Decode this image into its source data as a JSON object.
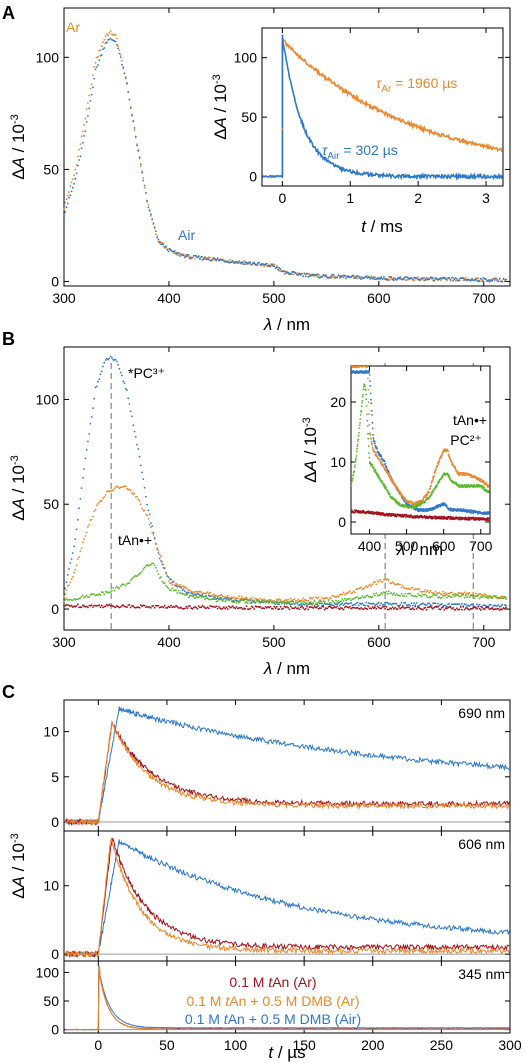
{
  "panels": {
    "A": {
      "label": "A"
    },
    "B": {
      "label": "B"
    },
    "C": {
      "label": "C"
    }
  },
  "colors": {
    "ar": "#E8892E",
    "air": "#2E78C8",
    "red": "#A0141E",
    "green": "#5BB82E",
    "zero": "#9a9a9a",
    "dash": "#888888"
  },
  "chart_data": [
    {
      "id": "A",
      "type": "scatter",
      "xlabel": "λ / nm",
      "ylabel": "ΔA / 10⁻³",
      "xlim": [
        300,
        725
      ],
      "ylim": [
        -2,
        122
      ],
      "xticks": [
        300,
        400,
        500,
        600,
        700
      ],
      "yticks": [
        0,
        50,
        100
      ],
      "annotations": [
        "Ar",
        "Air"
      ],
      "series": [
        {
          "name": "Ar",
          "color": "ar",
          "x": [
            300,
            310,
            320,
            330,
            340,
            345,
            350,
            360,
            370,
            380,
            390,
            400,
            410,
            420,
            440,
            460,
            480,
            500,
            510,
            540,
            580,
            620,
            660,
            700,
            725
          ],
          "y": [
            33,
            48,
            72,
            98,
            110,
            111,
            109,
            88,
            60,
            34,
            18,
            14,
            12,
            11,
            10,
            9,
            8,
            7,
            4,
            2.5,
            1.8,
            1.3,
            1,
            0.8,
            0.6
          ]
        },
        {
          "name": "Air",
          "color": "air",
          "x": [
            300,
            310,
            320,
            330,
            340,
            345,
            350,
            360,
            370,
            380,
            390,
            400,
            410,
            420,
            440,
            460,
            480,
            500,
            510,
            540,
            580,
            620,
            660,
            700,
            725
          ],
          "y": [
            30,
            44,
            66,
            94,
            107,
            108,
            107,
            88,
            60,
            34,
            18,
            14,
            12,
            11,
            10,
            9,
            8,
            7,
            4,
            2.5,
            1.8,
            1.3,
            1,
            0.8,
            0.6
          ]
        }
      ]
    },
    {
      "id": "A-inset",
      "type": "line",
      "xlabel": "t / ms",
      "ylabel": "ΔA / 10⁻³",
      "xlim": [
        -0.3,
        3.25
      ],
      "ylim": [
        -8,
        125
      ],
      "xticks": [
        0,
        1,
        2,
        3
      ],
      "yticks": [
        0,
        50,
        100
      ],
      "annotations": [
        {
          "pre": "τ",
          "sub": "Ar",
          "post": " = 1960 µs",
          "color": "ar"
        },
        {
          "pre": "τ",
          "sub": "Air",
          "post": " = 302 µs",
          "color": "air"
        }
      ],
      "series": [
        {
          "name": "Ar",
          "color": "ar",
          "amplitude": 115,
          "tau_ms": 1.96
        },
        {
          "name": "Air",
          "color": "air",
          "amplitude": 118,
          "tau_ms": 0.302
        }
      ]
    },
    {
      "id": "B",
      "type": "scatter",
      "xlabel": "λ / nm",
      "ylabel": "ΔA / 10⁻³",
      "xlim": [
        300,
        725
      ],
      "ylim": [
        -10,
        125
      ],
      "xticks": [
        300,
        400,
        500,
        600,
        700
      ],
      "yticks": [
        0,
        50,
        100
      ],
      "markers": [
        345,
        606,
        690
      ],
      "annotations": [
        "*PC³⁺",
        "tAn•+"
      ],
      "series": [
        {
          "name": "blue",
          "color": "air",
          "x": [
            300,
            310,
            320,
            330,
            340,
            345,
            350,
            360,
            370,
            380,
            390,
            400,
            420,
            450,
            500,
            550,
            600,
            650,
            700,
            725
          ],
          "y": [
            8,
            30,
            70,
            105,
            119,
            120,
            118,
            104,
            78,
            48,
            26,
            14,
            7,
            5,
            3,
            2,
            2.5,
            2,
            1.5,
            1.2
          ]
        },
        {
          "name": "orange",
          "color": "ar",
          "x": [
            300,
            310,
            320,
            330,
            340,
            350,
            360,
            370,
            380,
            390,
            400,
            420,
            450,
            500,
            550,
            580,
            600,
            606,
            620,
            650,
            690,
            725
          ],
          "y": [
            6,
            18,
            35,
            48,
            55,
            58,
            58,
            53,
            43,
            28,
            13,
            9,
            6,
            4,
            5,
            9,
            13,
            14,
            11,
            8,
            7,
            5
          ]
        },
        {
          "name": "green",
          "color": "green",
          "x": [
            300,
            320,
            340,
            360,
            370,
            380,
            385,
            390,
            400,
            420,
            450,
            500,
            550,
            580,
            600,
            606,
            620,
            650,
            690,
            725
          ],
          "y": [
            4,
            6,
            8,
            12,
            16,
            21,
            22,
            16,
            10,
            6,
            4,
            3,
            3,
            5,
            7,
            8,
            7,
            6,
            6,
            5
          ]
        },
        {
          "name": "red",
          "color": "red",
          "x": [
            300,
            350,
            400,
            500,
            600,
            700,
            725
          ],
          "y": [
            1.5,
            1.5,
            1,
            0.5,
            0.5,
            0.3,
            0.3
          ]
        }
      ]
    },
    {
      "id": "B-inset",
      "type": "scatter",
      "xlabel": "λ / nm",
      "ylabel": "ΔA / 10⁻³",
      "xlim": [
        350,
        725
      ],
      "ylim": [
        -2,
        26
      ],
      "xticks": [
        400,
        500,
        600,
        700
      ],
      "yticks": [
        0,
        10,
        20
      ],
      "annotations": [
        "tAn•+",
        "PC²⁺"
      ],
      "series": [
        {
          "name": "blue",
          "color": "air",
          "x": [
            400,
            410,
            420,
            440,
            460,
            480,
            500,
            530,
            560,
            600,
            620,
            650,
            700,
            720
          ],
          "y": [
            25,
            14,
            12,
            10,
            7,
            5,
            3,
            2,
            2,
            3,
            2,
            2,
            1.5,
            1.5
          ]
        },
        {
          "name": "orange",
          "color": "ar",
          "x": [
            395,
            400,
            410,
            420,
            440,
            460,
            480,
            500,
            520,
            540,
            560,
            580,
            600,
            610,
            620,
            640,
            660,
            680,
            700,
            720
          ],
          "y": [
            26,
            15,
            12,
            11,
            9,
            7,
            5,
            3.5,
            3,
            3.5,
            5,
            9,
            12,
            12,
            10,
            8,
            8,
            7.5,
            7,
            6
          ]
        },
        {
          "name": "green",
          "color": "green",
          "x": [
            350,
            360,
            370,
            380,
            385,
            390,
            395,
            400,
            410,
            420,
            440,
            460,
            480,
            500,
            520,
            540,
            560,
            580,
            600,
            610,
            620,
            640,
            660,
            680,
            700,
            720
          ],
          "y": [
            6,
            9,
            14,
            20,
            23,
            22,
            16,
            10,
            9,
            8,
            6,
            4,
            3,
            2.5,
            2.5,
            3,
            4,
            6,
            8,
            8,
            7,
            6,
            6,
            6,
            6,
            5
          ]
        },
        {
          "name": "red",
          "color": "red",
          "x": [
            350,
            400,
            450,
            500,
            550,
            600,
            650,
            700,
            720
          ],
          "y": [
            1.8,
            1.6,
            1.2,
            1,
            0.8,
            0.7,
            0.6,
            0.5,
            0.5
          ]
        }
      ]
    },
    {
      "id": "C",
      "type": "line",
      "xlabel": "t / µs",
      "ylabel": "ΔA / 10⁻³",
      "xlim": [
        -25,
        300
      ],
      "xticks": [
        0,
        50,
        100,
        150,
        200,
        250,
        300
      ],
      "legend": [
        {
          "pre": "0.1 M ",
          "it": "t",
          "post": "An (Ar)",
          "color": "red"
        },
        {
          "pre": "0.1 M ",
          "it": "t",
          "post": "An + 0.5 M DMB (Ar)",
          "color": "ar"
        },
        {
          "pre": "0.1 M ",
          "it": "t",
          "post": "An + 0.5 M DMB (Air)",
          "color": "air"
        }
      ],
      "subplots": [
        {
          "label": "690 nm",
          "ylim": [
            -1,
            13.5
          ],
          "yticks": [
            0,
            5,
            10
          ],
          "series": [
            {
              "color": "air",
              "peak": 12.5,
              "peak_t": 15,
              "tail": 4,
              "tau": 200
            },
            {
              "color": "red",
              "peak": 11,
              "peak_t": 10,
              "tail": 2,
              "tau": 30
            },
            {
              "color": "ar",
              "peak": 11,
              "peak_t": 10,
              "tail": 1.8,
              "tau": 27
            }
          ]
        },
        {
          "label": "606 nm",
          "ylim": [
            -1,
            18
          ],
          "yticks": [
            0,
            10
          ],
          "series": [
            {
              "color": "air",
              "peak": 16.5,
              "peak_t": 15,
              "tail": 1.5,
              "tau": 130
            },
            {
              "color": "red",
              "peak": 17,
              "peak_t": 10,
              "tail": 1,
              "tau": 25
            },
            {
              "color": "ar",
              "peak": 17,
              "peak_t": 9,
              "tail": 0.5,
              "tau": 22
            }
          ]
        },
        {
          "label": "345 nm",
          "ylim": [
            -6,
            120
          ],
          "yticks": [
            0,
            50,
            100
          ],
          "series": [
            {
              "color": "air",
              "peak": 110,
              "peak_t": 0,
              "tail": 3,
              "tau": 8
            },
            {
              "color": "red",
              "peak": 110,
              "peak_t": 0,
              "tail": 1,
              "tau": 7
            },
            {
              "color": "ar",
              "peak": 110,
              "peak_t": 0,
              "tail": 0.5,
              "tau": 7
            }
          ]
        }
      ]
    }
  ]
}
